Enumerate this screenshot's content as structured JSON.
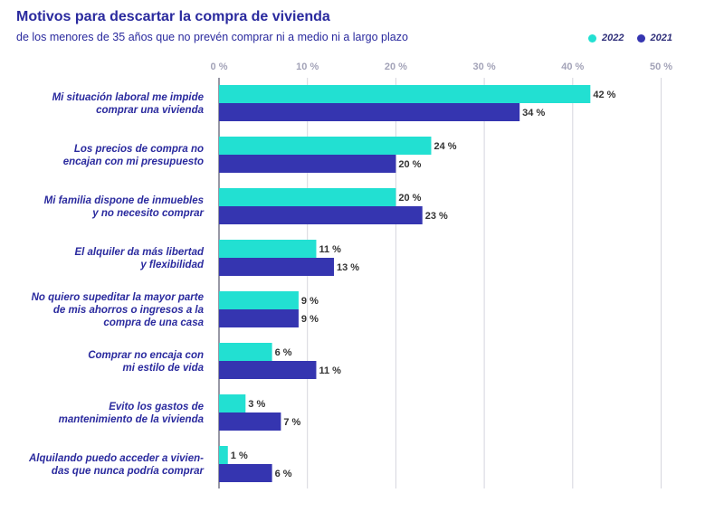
{
  "chart_data": {
    "type": "bar",
    "orientation": "horizontal",
    "title": "Motivos para descartar la compra de vivienda",
    "subtitle": "de los menores de 35 años que no prevén comprar ni a medio ni a largo plazo",
    "categories": [
      [
        "Mi situación laboral me impide",
        "comprar una vivienda"
      ],
      [
        "Los precios de compra no",
        "encajan con mi presupuesto"
      ],
      [
        "Mi familia dispone de inmuebles",
        "y no necesito comprar"
      ],
      [
        "El alquiler da más libertad",
        "y flexibilidad"
      ],
      [
        "No quiero supeditar la mayor parte",
        "de mis ahorros o ingresos a la",
        "compra de una casa"
      ],
      [
        "Comprar no encaja con",
        "mi estilo de vida"
      ],
      [
        "Evito los gastos de",
        "mantenimiento de la vivienda"
      ],
      [
        "Alquilando puedo acceder a vivien-",
        "das que nunca podría comprar"
      ]
    ],
    "series": [
      {
        "name": "2022",
        "color": "#22e0d2",
        "values": [
          42,
          24,
          20,
          11,
          9,
          6,
          3,
          1
        ],
        "labels": [
          "42 %",
          "24 %",
          "20 %",
          "11 %",
          "9 %",
          "6 %",
          "3 %",
          "1 %"
        ]
      },
      {
        "name": "2021",
        "color": "#3535b0",
        "values": [
          34,
          20,
          23,
          13,
          9,
          11,
          7,
          6
        ],
        "labels": [
          "34 %",
          "20 %",
          "23 %",
          "13 %",
          "9 %",
          "11 %",
          "7 %",
          "6 %"
        ]
      }
    ],
    "xlim": [
      0,
      50
    ],
    "xticks": [
      0,
      10,
      20,
      30,
      40,
      50
    ],
    "xtick_labels": [
      "0 %",
      "10 %",
      "20 %",
      "30 %",
      "40 %",
      "50 %"
    ],
    "grid": true,
    "legend_position": "top-right"
  }
}
